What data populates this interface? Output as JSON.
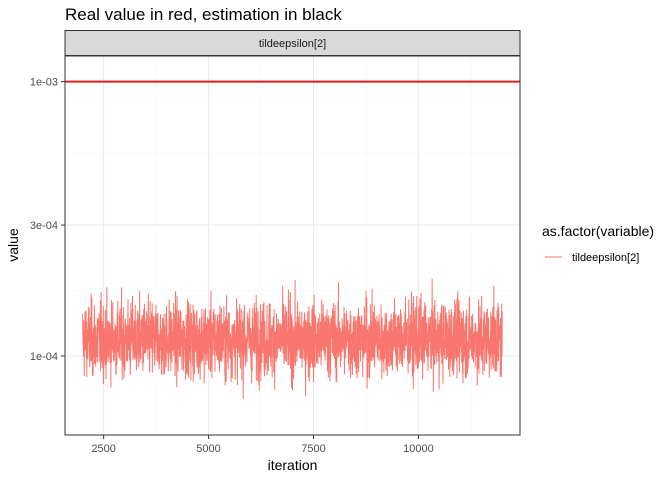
{
  "chart_data": {
    "type": "line",
    "title": "Real value in red, estimation in black",
    "xlabel": "iteration",
    "ylabel": "value",
    "facet_label": "tildeepsilon[2]",
    "legend_title": "as.factor(variable)",
    "legend_position": "right",
    "grid": true,
    "y_scale": "log10",
    "xlim": [
      1580,
      12420
    ],
    "ylim": [
      5.15e-05,
      0.00124
    ],
    "x_ticks": [
      2500,
      5000,
      7500,
      10000
    ],
    "x_tick_labels": [
      "2500",
      "5000",
      "7500",
      "10000"
    ],
    "y_ticks": [
      0.0001,
      0.0003,
      0.001
    ],
    "y_tick_labels": [
      "1e-04",
      "3e-04",
      "1e-03"
    ],
    "y_minor_ticks": [
      0.000173,
      0.000548
    ],
    "series": [
      {
        "name": "tildeepsilon[2]",
        "color": "#F8766D",
        "x_range": [
          2000,
          12000
        ],
        "typical_center": 0.000115,
        "typical_range": [
          8.5e-05,
          0.00016
        ],
        "extremes": [
          6.25e-05,
          0.00021
        ]
      }
    ],
    "reference_lines": [
      {
        "y": 0.001,
        "color": "#E41A1C"
      }
    ]
  },
  "colors": {
    "panel_border": "#333333",
    "grid_major": "#EBEBEB",
    "grid_minor": "#F5F5F5",
    "strip_fill": "#D9D9D9"
  }
}
